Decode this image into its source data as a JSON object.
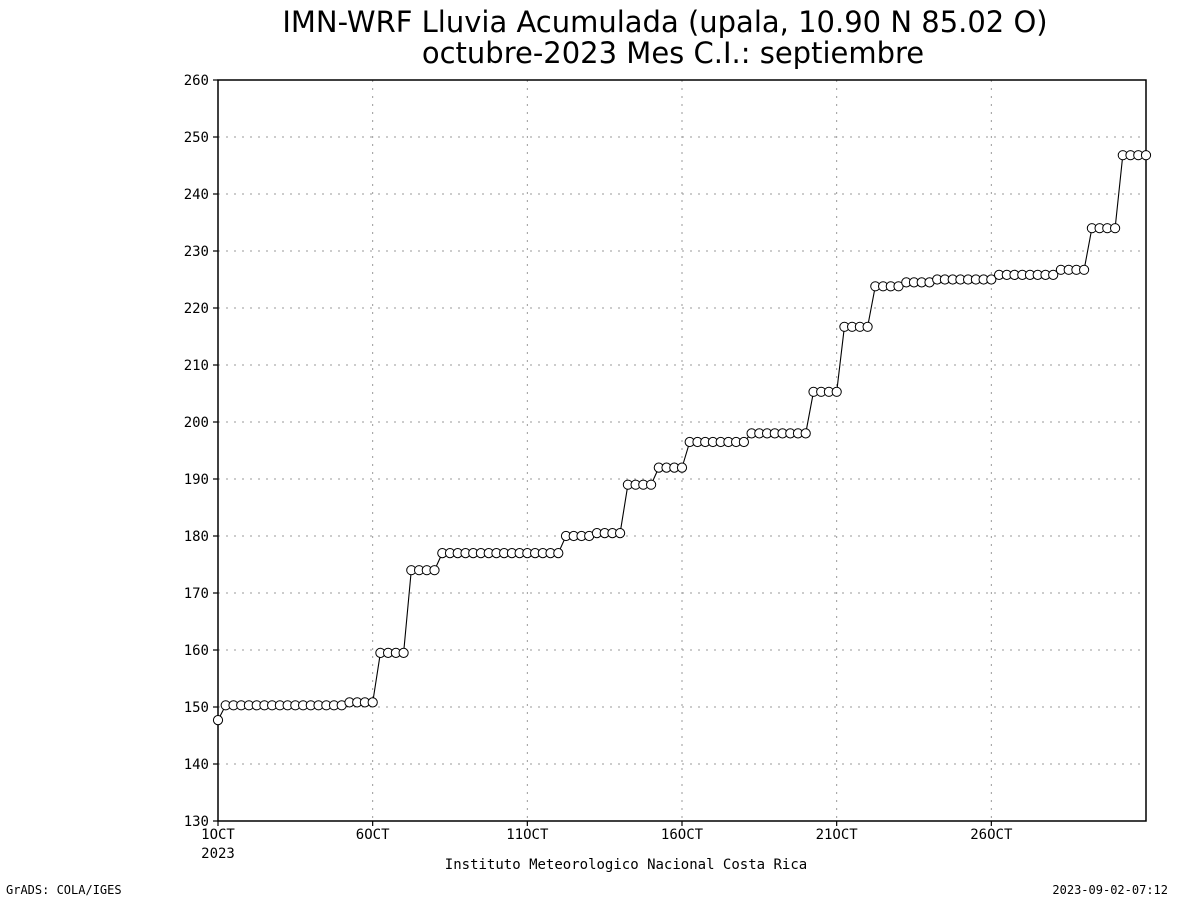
{
  "chart_data": {
    "type": "line",
    "title": "IMN-WRF  Lluvia Acumulada (upala, 10.90  N 85.02  O)",
    "subtitle": "octubre-2023 Mes C.I.: septiembre",
    "xlabel": "Instituto Meteorologico Nacional Costa Rica",
    "ylabel": "",
    "ylim": [
      130,
      260
    ],
    "yticks": [
      130,
      140,
      150,
      160,
      170,
      180,
      190,
      200,
      210,
      220,
      230,
      240,
      250,
      260
    ],
    "xlim": [
      0,
      30
    ],
    "x_tick_positions": [
      0,
      5,
      10,
      15,
      20,
      25
    ],
    "x_tick_labels": [
      "1OCT",
      "6OCT",
      "11OCT",
      "16OCT",
      "21OCT",
      "26OCT"
    ],
    "x_year_label": "2023",
    "x_resolution": "6-hourly (day offset from 1 Oct 2023 00Z)",
    "grid": true,
    "marker": "open-circle",
    "series_steps": [
      {
        "from_day": 0.0,
        "to_day": 0.0,
        "value": 147.7
      },
      {
        "from_day": 0.25,
        "to_day": 4.0,
        "value": 150.3
      },
      {
        "from_day": 4.25,
        "to_day": 5.0,
        "value": 150.8
      },
      {
        "from_day": 5.25,
        "to_day": 6.0,
        "value": 159.5
      },
      {
        "from_day": 6.25,
        "to_day": 7.0,
        "value": 174.0
      },
      {
        "from_day": 7.25,
        "to_day": 11.0,
        "value": 177.0
      },
      {
        "from_day": 11.25,
        "to_day": 12.0,
        "value": 180.0
      },
      {
        "from_day": 12.25,
        "to_day": 13.0,
        "value": 180.5
      },
      {
        "from_day": 13.25,
        "to_day": 14.0,
        "value": 189.0
      },
      {
        "from_day": 14.25,
        "to_day": 15.0,
        "value": 192.0
      },
      {
        "from_day": 15.25,
        "to_day": 17.0,
        "value": 196.5
      },
      {
        "from_day": 17.25,
        "to_day": 19.0,
        "value": 198.0
      },
      {
        "from_day": 19.25,
        "to_day": 20.0,
        "value": 205.3
      },
      {
        "from_day": 20.25,
        "to_day": 21.0,
        "value": 216.7
      },
      {
        "from_day": 21.25,
        "to_day": 22.0,
        "value": 223.8
      },
      {
        "from_day": 22.25,
        "to_day": 23.0,
        "value": 224.5
      },
      {
        "from_day": 23.25,
        "to_day": 25.0,
        "value": 225.0
      },
      {
        "from_day": 25.25,
        "to_day": 27.0,
        "value": 225.8
      },
      {
        "from_day": 27.25,
        "to_day": 28.0,
        "value": 226.7
      },
      {
        "from_day": 28.25,
        "to_day": 29.0,
        "value": 234.0
      },
      {
        "from_day": 29.25,
        "to_day": 30.0,
        "value": 246.8
      }
    ]
  },
  "footer": {
    "left": "GrADS: COLA/IGES",
    "right": "2023-09-02-07:12"
  }
}
